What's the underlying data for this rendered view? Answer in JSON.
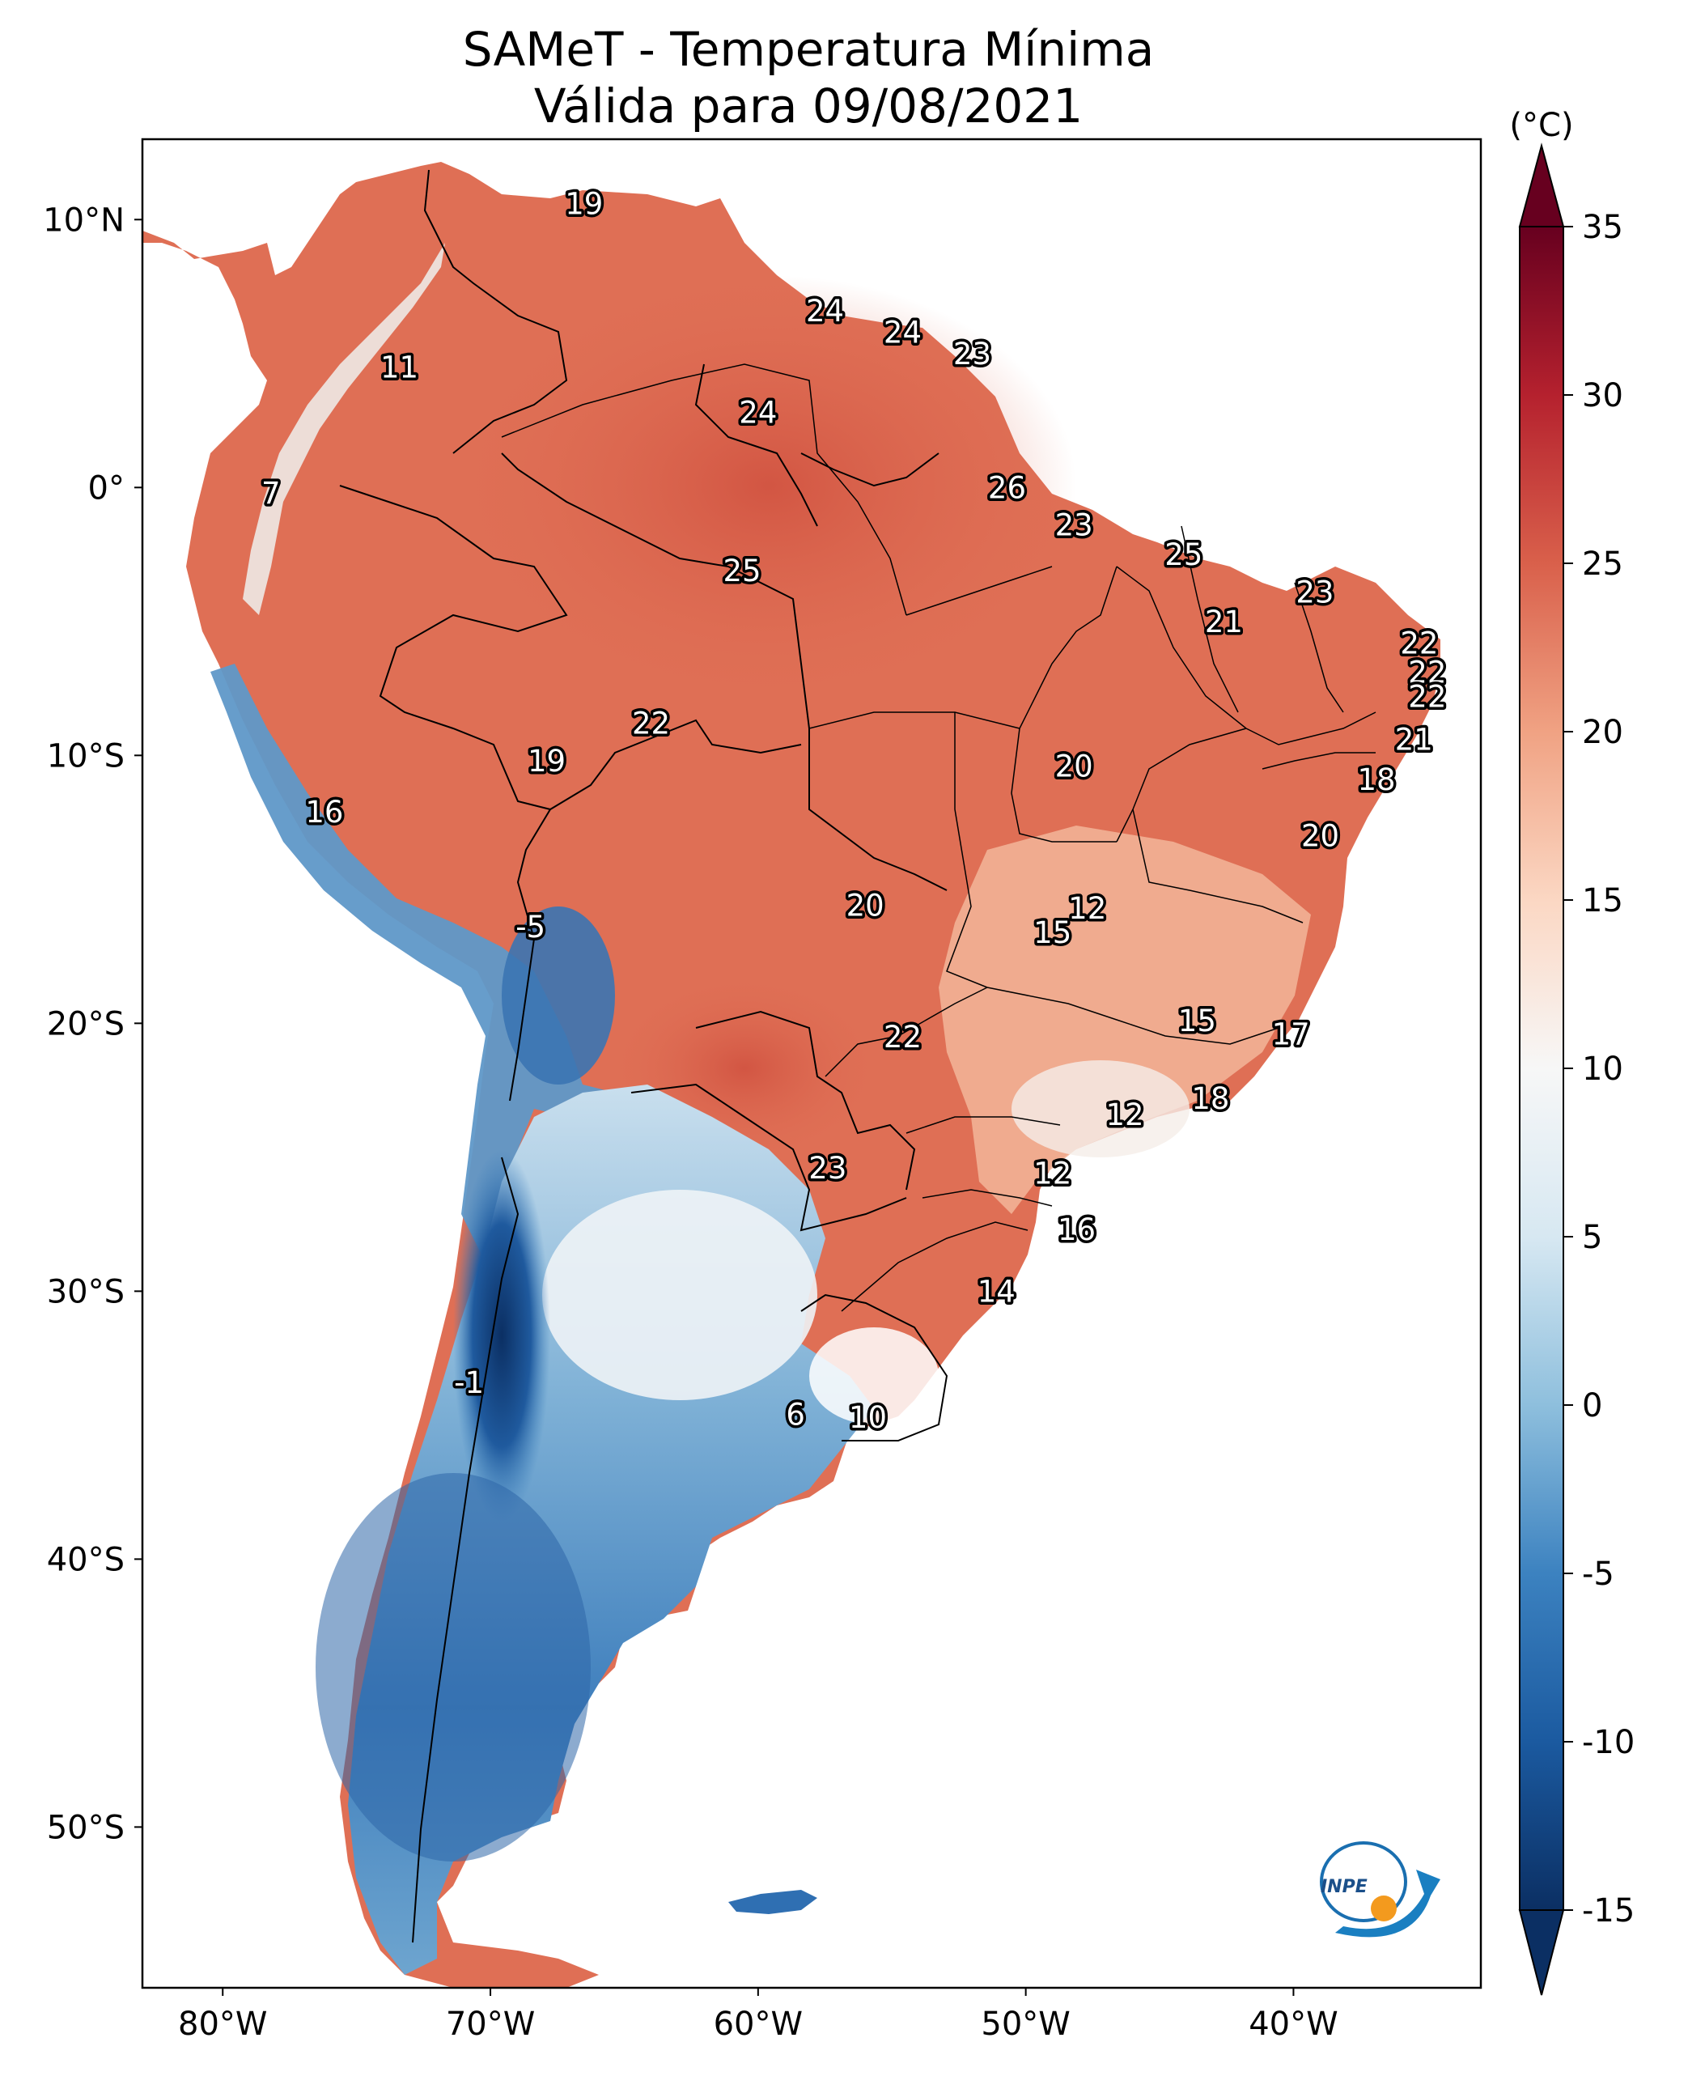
{
  "title": {
    "line1": "SAMeT - Temperatura Mínima",
    "line2": "Válida para 09/08/2021"
  },
  "axes": {
    "lat_ticks": [
      {
        "value": 10,
        "label": "10°N"
      },
      {
        "value": 0,
        "label": "0°"
      },
      {
        "value": -10,
        "label": "10°S"
      },
      {
        "value": -20,
        "label": "20°S"
      },
      {
        "value": -30,
        "label": "30°S"
      },
      {
        "value": -40,
        "label": "40°S"
      },
      {
        "value": -50,
        "label": "50°S"
      }
    ],
    "lon_ticks": [
      {
        "value": -80,
        "label": "80°W"
      },
      {
        "value": -70,
        "label": "70°W"
      },
      {
        "value": -60,
        "label": "60°W"
      },
      {
        "value": -50,
        "label": "50°W"
      },
      {
        "value": -40,
        "label": "40°W"
      }
    ]
  },
  "colorbar": {
    "unit": "(°C)",
    "min": -15,
    "max": 35,
    "ticks": [
      "35",
      "30",
      "25",
      "20",
      "15",
      "10",
      "5",
      "0",
      "-5",
      "-10",
      "-15"
    ],
    "colors": {
      "dark_blue": "#0b2f63",
      "blue": "#2f6fb2",
      "light_blue": "#9cc7e0",
      "white": "#f5f5f5",
      "light_red": "#f3b99a",
      "red": "#d9604b",
      "dark_red": "#67001f"
    }
  },
  "labels": [
    {
      "text": "19",
      "lon": -66.5,
      "lat": 10.6
    },
    {
      "text": "11",
      "lon": -73.4,
      "lat": 4.5
    },
    {
      "text": "24",
      "lon": -57.5,
      "lat": 6.6
    },
    {
      "text": "24",
      "lon": -54.6,
      "lat": 5.8
    },
    {
      "text": "23",
      "lon": -52.0,
      "lat": 5.0
    },
    {
      "text": "24",
      "lon": -60.0,
      "lat": 2.8
    },
    {
      "text": "7",
      "lon": -78.2,
      "lat": -0.2
    },
    {
      "text": "26",
      "lon": -50.7,
      "lat": 0.0
    },
    {
      "text": "23",
      "lon": -48.2,
      "lat": -1.4
    },
    {
      "text": "25",
      "lon": -60.6,
      "lat": -3.1
    },
    {
      "text": "25",
      "lon": -44.1,
      "lat": -2.5
    },
    {
      "text": "23",
      "lon": -39.2,
      "lat": -3.9
    },
    {
      "text": "21",
      "lon": -42.6,
      "lat": -5.0
    },
    {
      "text": "22",
      "lon": -35.3,
      "lat": -5.8
    },
    {
      "text": "22",
      "lon": -35.0,
      "lat": -6.9
    },
    {
      "text": "22",
      "lon": -35.0,
      "lat": -7.8
    },
    {
      "text": "22",
      "lon": -64.0,
      "lat": -8.8
    },
    {
      "text": "19",
      "lon": -67.9,
      "lat": -10.2
    },
    {
      "text": "20",
      "lon": -48.2,
      "lat": -10.4
    },
    {
      "text": "21",
      "lon": -35.5,
      "lat": -9.4
    },
    {
      "text": "18",
      "lon": -36.9,
      "lat": -10.9
    },
    {
      "text": "16",
      "lon": -76.2,
      "lat": -12.1
    },
    {
      "text": "20",
      "lon": -39.0,
      "lat": -13.0
    },
    {
      "text": "20",
      "lon": -56.0,
      "lat": -15.6
    },
    {
      "text": "12",
      "lon": -47.7,
      "lat": -15.7
    },
    {
      "text": "15",
      "lon": -49.0,
      "lat": -16.6
    },
    {
      "text": "-5",
      "lon": -68.5,
      "lat": -16.4
    },
    {
      "text": "15",
      "lon": -43.6,
      "lat": -19.9
    },
    {
      "text": "17",
      "lon": -40.1,
      "lat": -20.4
    },
    {
      "text": "22",
      "lon": -54.6,
      "lat": -20.5
    },
    {
      "text": "12",
      "lon": -46.3,
      "lat": -23.4
    },
    {
      "text": "18",
      "lon": -43.1,
      "lat": -22.8
    },
    {
      "text": "23",
      "lon": -57.4,
      "lat": -25.4
    },
    {
      "text": "12",
      "lon": -49.0,
      "lat": -25.6
    },
    {
      "text": "16",
      "lon": -48.1,
      "lat": -27.7
    },
    {
      "text": "14",
      "lon": -51.1,
      "lat": -30.0
    },
    {
      "text": "-1",
      "lon": -70.8,
      "lat": -33.4
    },
    {
      "text": "6",
      "lon": -58.6,
      "lat": -34.6
    },
    {
      "text": "10",
      "lon": -55.9,
      "lat": -34.7
    }
  ],
  "logo": {
    "text": "INPE"
  }
}
